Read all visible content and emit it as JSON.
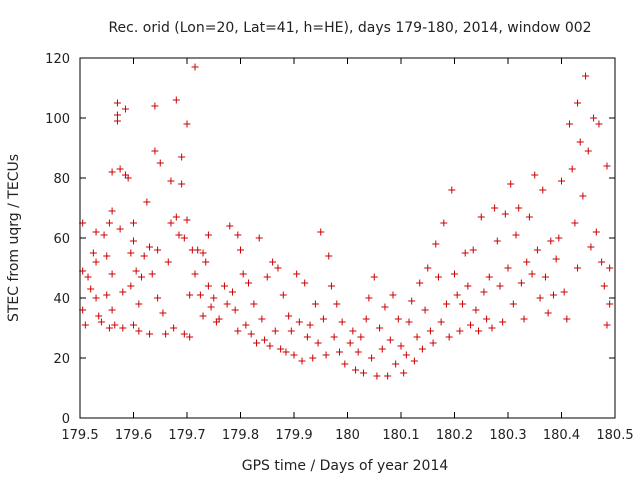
{
  "chart_data": {
    "type": "scatter",
    "title": "Rec. orid (Lon=20, Lat=41, h=HE), days 179-180, 2014, window 002",
    "xlabel": "GPS time / Days of year 2014",
    "ylabel": "STEC from uqrg / TECUs",
    "xlim": [
      179.5,
      180.5
    ],
    "ylim": [
      0,
      120
    ],
    "x_ticks": [
      "179.5",
      "179.6",
      "179.7",
      "179.8",
      "179.9",
      "180",
      "180.1",
      "180.2",
      "180.3",
      "180.4",
      "180.5"
    ],
    "y_ticks": [
      "0",
      "20",
      "40",
      "60",
      "80",
      "100",
      "120"
    ],
    "grid": false,
    "legend": "none",
    "marker": "+",
    "color": "#cc0000",
    "series": [
      {
        "points": [
          [
            179.505,
            65
          ],
          [
            179.505,
            49
          ],
          [
            179.505,
            36
          ],
          [
            179.51,
            31
          ],
          [
            179.515,
            47
          ],
          [
            179.52,
            43
          ],
          [
            179.525,
            55
          ],
          [
            179.53,
            62
          ],
          [
            179.53,
            52
          ],
          [
            179.53,
            40
          ],
          [
            179.535,
            34
          ],
          [
            179.54,
            32
          ],
          [
            179.545,
            61
          ],
          [
            179.55,
            54
          ],
          [
            179.55,
            41
          ],
          [
            179.555,
            65
          ],
          [
            179.555,
            30
          ],
          [
            179.56,
            82
          ],
          [
            179.56,
            69
          ],
          [
            179.56,
            48
          ],
          [
            179.56,
            36
          ],
          [
            179.565,
            31
          ],
          [
            179.57,
            105
          ],
          [
            179.57,
            101
          ],
          [
            179.57,
            99
          ],
          [
            179.575,
            83
          ],
          [
            179.575,
            63
          ],
          [
            179.58,
            42
          ],
          [
            179.58,
            30
          ],
          [
            179.585,
            81
          ],
          [
            179.585,
            103
          ],
          [
            179.59,
            80
          ],
          [
            179.595,
            55
          ],
          [
            179.595,
            44
          ],
          [
            179.6,
            65
          ],
          [
            179.6,
            59
          ],
          [
            179.6,
            31
          ],
          [
            179.605,
            49
          ],
          [
            179.61,
            38
          ],
          [
            179.61,
            29
          ],
          [
            179.615,
            47
          ],
          [
            179.62,
            54
          ],
          [
            179.625,
            72
          ],
          [
            179.63,
            57
          ],
          [
            179.63,
            28
          ],
          [
            179.635,
            48
          ],
          [
            179.64,
            104
          ],
          [
            179.64,
            89
          ],
          [
            179.645,
            56
          ],
          [
            179.645,
            40
          ],
          [
            179.65,
            85
          ],
          [
            179.655,
            35
          ],
          [
            179.66,
            28
          ],
          [
            179.665,
            52
          ],
          [
            179.67,
            79
          ],
          [
            179.67,
            65
          ],
          [
            179.675,
            30
          ],
          [
            179.68,
            106
          ],
          [
            179.68,
            67
          ],
          [
            179.685,
            61
          ],
          [
            179.69,
            87
          ],
          [
            179.69,
            78
          ],
          [
            179.695,
            60
          ],
          [
            179.695,
            28
          ],
          [
            179.7,
            98
          ],
          [
            179.7,
            66
          ],
          [
            179.705,
            41
          ],
          [
            179.705,
            27
          ],
          [
            179.71,
            56
          ],
          [
            179.715,
            117
          ],
          [
            179.715,
            48
          ],
          [
            179.72,
            56
          ],
          [
            179.725,
            41
          ],
          [
            179.73,
            55
          ],
          [
            179.73,
            34
          ],
          [
            179.735,
            52
          ],
          [
            179.74,
            61
          ],
          [
            179.74,
            44
          ],
          [
            179.745,
            37
          ],
          [
            179.75,
            40
          ],
          [
            179.755,
            32
          ],
          [
            179.76,
            33
          ],
          [
            179.77,
            44
          ],
          [
            179.775,
            38
          ],
          [
            179.78,
            64
          ],
          [
            179.785,
            42
          ],
          [
            179.79,
            36
          ],
          [
            179.795,
            61
          ],
          [
            179.795,
            29
          ],
          [
            179.8,
            56
          ],
          [
            179.805,
            48
          ],
          [
            179.81,
            31
          ],
          [
            179.815,
            45
          ],
          [
            179.82,
            28
          ],
          [
            179.825,
            38
          ],
          [
            179.83,
            25
          ],
          [
            179.835,
            60
          ],
          [
            179.84,
            33
          ],
          [
            179.845,
            26
          ],
          [
            179.85,
            47
          ],
          [
            179.855,
            24
          ],
          [
            179.86,
            52
          ],
          [
            179.865,
            29
          ],
          [
            179.87,
            50
          ],
          [
            179.875,
            23
          ],
          [
            179.88,
            41
          ],
          [
            179.885,
            22
          ],
          [
            179.89,
            34
          ],
          [
            179.895,
            29
          ],
          [
            179.9,
            21
          ],
          [
            179.905,
            48
          ],
          [
            179.91,
            32
          ],
          [
            179.915,
            19
          ],
          [
            179.92,
            45
          ],
          [
            179.925,
            27
          ],
          [
            179.93,
            31
          ],
          [
            179.935,
            20
          ],
          [
            179.94,
            38
          ],
          [
            179.945,
            25
          ],
          [
            179.95,
            62
          ],
          [
            179.955,
            33
          ],
          [
            179.96,
            21
          ],
          [
            179.965,
            54
          ],
          [
            179.97,
            44
          ],
          [
            179.975,
            27
          ],
          [
            179.98,
            38
          ],
          [
            179.985,
            22
          ],
          [
            179.99,
            32
          ],
          [
            179.995,
            18
          ],
          [
            180.005,
            25
          ],
          [
            180.01,
            29
          ],
          [
            180.015,
            16
          ],
          [
            180.02,
            22
          ],
          [
            180.025,
            27
          ],
          [
            180.03,
            15
          ],
          [
            180.035,
            33
          ],
          [
            180.04,
            40
          ],
          [
            180.045,
            20
          ],
          [
            180.05,
            47
          ],
          [
            180.055,
            14
          ],
          [
            180.06,
            30
          ],
          [
            180.065,
            23
          ],
          [
            180.07,
            37
          ],
          [
            180.075,
            14
          ],
          [
            180.08,
            26
          ],
          [
            180.085,
            41
          ],
          [
            180.09,
            18
          ],
          [
            180.095,
            33
          ],
          [
            180.1,
            24
          ],
          [
            180.105,
            15
          ],
          [
            180.11,
            21
          ],
          [
            180.115,
            32
          ],
          [
            180.12,
            39
          ],
          [
            180.125,
            19
          ],
          [
            180.13,
            27
          ],
          [
            180.135,
            45
          ],
          [
            180.14,
            23
          ],
          [
            180.145,
            36
          ],
          [
            180.15,
            50
          ],
          [
            180.155,
            29
          ],
          [
            180.16,
            25
          ],
          [
            180.165,
            58
          ],
          [
            180.17,
            47
          ],
          [
            180.175,
            32
          ],
          [
            180.18,
            65
          ],
          [
            180.185,
            38
          ],
          [
            180.19,
            27
          ],
          [
            180.195,
            76
          ],
          [
            180.2,
            48
          ],
          [
            180.205,
            41
          ],
          [
            180.21,
            29
          ],
          [
            180.215,
            38
          ],
          [
            180.22,
            55
          ],
          [
            180.225,
            44
          ],
          [
            180.23,
            31
          ],
          [
            180.235,
            56
          ],
          [
            180.24,
            36
          ],
          [
            180.245,
            29
          ],
          [
            180.25,
            67
          ],
          [
            180.255,
            42
          ],
          [
            180.26,
            33
          ],
          [
            180.265,
            47
          ],
          [
            180.27,
            30
          ],
          [
            180.275,
            70
          ],
          [
            180.28,
            59
          ],
          [
            180.285,
            44
          ],
          [
            180.29,
            32
          ],
          [
            180.295,
            68
          ],
          [
            180.3,
            50
          ],
          [
            180.305,
            78
          ],
          [
            180.31,
            38
          ],
          [
            180.315,
            61
          ],
          [
            180.32,
            70
          ],
          [
            180.325,
            45
          ],
          [
            180.33,
            33
          ],
          [
            180.335,
            52
          ],
          [
            180.34,
            67
          ],
          [
            180.345,
            48
          ],
          [
            180.35,
            81
          ],
          [
            180.355,
            56
          ],
          [
            180.36,
            40
          ],
          [
            180.365,
            76
          ],
          [
            180.37,
            47
          ],
          [
            180.375,
            35
          ],
          [
            180.38,
            59
          ],
          [
            180.385,
            41
          ],
          [
            180.39,
            53
          ],
          [
            180.395,
            60
          ],
          [
            180.4,
            79
          ],
          [
            180.405,
            42
          ],
          [
            180.41,
            33
          ],
          [
            180.415,
            98
          ],
          [
            180.42,
            83
          ],
          [
            180.425,
            65
          ],
          [
            180.43,
            105
          ],
          [
            180.43,
            50
          ],
          [
            180.435,
            92
          ],
          [
            180.44,
            74
          ],
          [
            180.445,
            114
          ],
          [
            180.45,
            89
          ],
          [
            180.455,
            57
          ],
          [
            180.46,
            100
          ],
          [
            180.465,
            62
          ],
          [
            180.47,
            98
          ],
          [
            180.475,
            52
          ],
          [
            180.48,
            44
          ],
          [
            180.485,
            84
          ],
          [
            180.485,
            31
          ],
          [
            180.49,
            50
          ],
          [
            180.49,
            38
          ]
        ]
      }
    ]
  }
}
